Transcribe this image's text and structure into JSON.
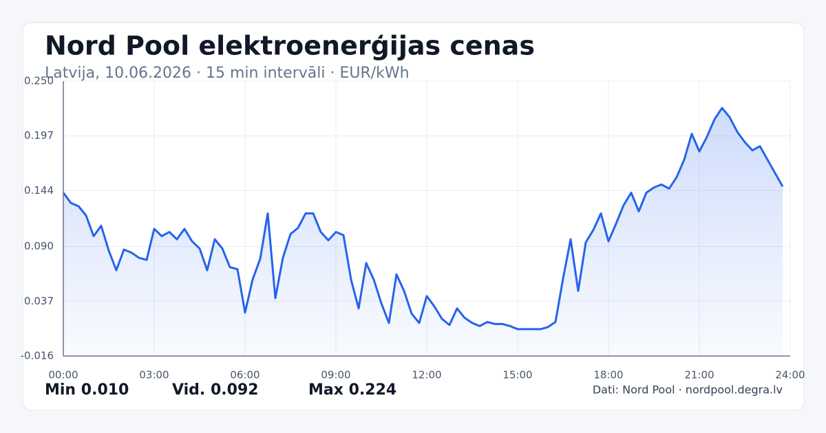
{
  "chart_data": {
    "type": "line",
    "title": "Nord Pool elektroenerģijas cenas",
    "subtitle": "Latvija, 10.06.2026 · 15 min intervāli · EUR/kWh",
    "x": [
      0,
      0.25,
      0.5,
      0.75,
      1,
      1.25,
      1.5,
      1.75,
      2,
      2.25,
      2.5,
      2.75,
      3,
      3.25,
      3.5,
      3.75,
      4,
      4.25,
      4.5,
      4.75,
      5,
      5.25,
      5.5,
      5.75,
      6,
      6.25,
      6.5,
      6.75,
      7,
      7.25,
      7.5,
      7.75,
      8,
      8.25,
      8.5,
      8.75,
      9,
      9.25,
      9.5,
      9.75,
      10,
      10.25,
      10.5,
      10.75,
      11,
      11.25,
      11.5,
      11.75,
      12,
      12.25,
      12.5,
      12.75,
      13,
      13.25,
      13.5,
      13.75,
      14,
      14.25,
      14.5,
      14.75,
      15,
      15.25,
      15.5,
      15.75,
      16,
      16.25,
      16.5,
      16.75,
      17,
      17.25,
      17.5,
      17.75,
      18,
      18.25,
      18.5,
      18.75,
      19,
      19.25,
      19.5,
      19.75,
      20,
      20.25,
      20.5,
      20.75,
      21,
      21.25,
      21.5,
      21.75,
      22,
      22.25,
      22.5,
      22.75,
      23,
      23.25,
      23.5,
      23.75
    ],
    "series": [
      {
        "color": "#2563eb",
        "values": [
          0.142,
          0.132,
          0.129,
          0.12,
          0.1,
          0.11,
          0.086,
          0.067,
          0.087,
          0.084,
          0.079,
          0.077,
          0.107,
          0.1,
          0.104,
          0.097,
          0.107,
          0.095,
          0.088,
          0.067,
          0.097,
          0.088,
          0.07,
          0.068,
          0.026,
          0.058,
          0.078,
          0.122,
          0.04,
          0.079,
          0.102,
          0.108,
          0.122,
          0.122,
          0.104,
          0.096,
          0.104,
          0.101,
          0.058,
          0.03,
          0.074,
          0.058,
          0.035,
          0.016,
          0.063,
          0.047,
          0.025,
          0.016,
          0.042,
          0.032,
          0.02,
          0.014,
          0.03,
          0.021,
          0.016,
          0.013,
          0.017,
          0.015,
          0.015,
          0.013,
          0.01,
          0.01,
          0.01,
          0.01,
          0.012,
          0.017,
          0.059,
          0.097,
          0.047,
          0.094,
          0.106,
          0.122,
          0.095,
          0.112,
          0.13,
          0.142,
          0.124,
          0.142,
          0.147,
          0.15,
          0.146,
          0.157,
          0.174,
          0.199,
          0.182,
          0.196,
          0.213,
          0.224,
          0.215,
          0.201,
          0.191,
          0.183,
          0.187,
          0.174,
          0.161,
          0.148
        ]
      }
    ],
    "xlim": [
      0,
      24
    ],
    "xticks": [
      {
        "value": 0,
        "label": "00:00"
      },
      {
        "value": 3,
        "label": "03:00"
      },
      {
        "value": 6,
        "label": "06:00"
      },
      {
        "value": 9,
        "label": "09:00"
      },
      {
        "value": 12,
        "label": "12:00"
      },
      {
        "value": 15,
        "label": "15:00"
      },
      {
        "value": 18,
        "label": "18:00"
      },
      {
        "value": 21,
        "label": "21:00"
      },
      {
        "value": 24,
        "label": "24:00"
      }
    ],
    "ylim": [
      -0.016,
      0.25
    ],
    "yticks": [
      -0.016,
      0.037,
      {
        "value": 0.09,
        "label": "0.090"
      },
      0.144,
      0.197,
      {
        "value": 0.25,
        "label": "0.250"
      }
    ],
    "grid": true,
    "stats": [
      {
        "label": "Min",
        "value": "0.010"
      },
      {
        "label": "Vid.",
        "value": "0.092"
      },
      {
        "label": "Max",
        "value": "0.224"
      }
    ],
    "source": "Dati: Nord Pool · nordpool.degra.lv"
  }
}
